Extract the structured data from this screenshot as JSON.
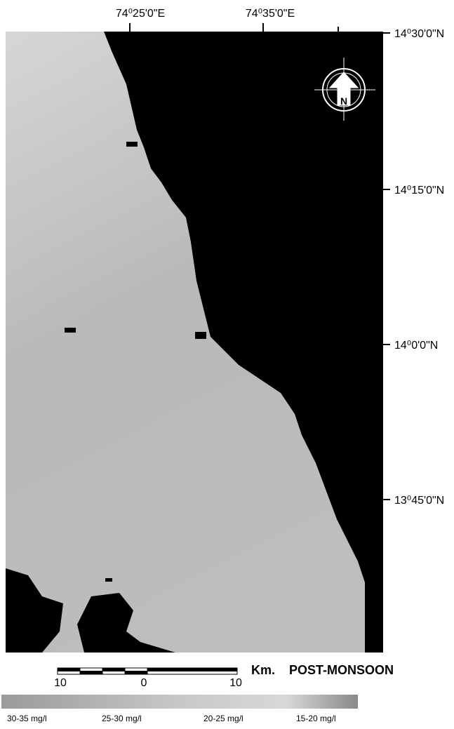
{
  "map": {
    "top_labels": [
      "74⁰25'0\"E",
      "74⁰35'0\"E"
    ],
    "right_labels": [
      "14⁰30'0\"N",
      "14⁰15'0\"N",
      "14⁰0'0\"N",
      "13⁰45'0\"N"
    ],
    "north": "N"
  },
  "scale": {
    "ticks": [
      "10",
      "0",
      "10"
    ],
    "unit": "Km.",
    "title": "POST-MONSOON"
  },
  "legend": {
    "labels": [
      "30-35 mg/l",
      "25-30 mg/l",
      "20-25 mg/l",
      "15-20 mg/l"
    ]
  }
}
